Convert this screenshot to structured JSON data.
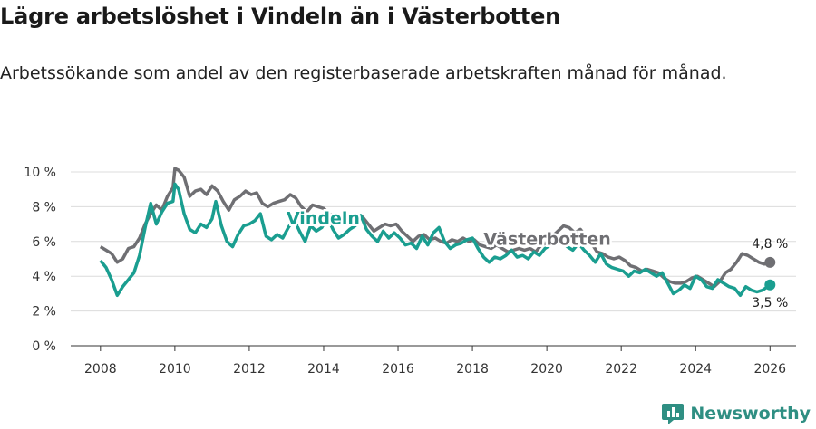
{
  "title": "Lägre arbetslöshet i Vindeln än i Västerbotten",
  "subtitle": "Arbetssökande som andel av den registerbaserade arbetskraften månad för månad.",
  "brand": "Newsworthy",
  "colors": {
    "vindeln": "#1a9e90",
    "vasterbotten": "#6f6f73",
    "grid": "#dcdcdc"
  },
  "chart_data": {
    "type": "line",
    "title": "Lägre arbetslöshet i Vindeln än i Västerbotten",
    "xlim": [
      2007.2,
      2026.7
    ],
    "ylim": [
      0,
      10
    ],
    "x_ticks": [
      2008,
      2010,
      2012,
      2014,
      2016,
      2018,
      2020,
      2022,
      2024,
      2026
    ],
    "y_ticks": [
      0,
      2,
      4,
      6,
      8,
      10
    ],
    "y_tick_labels": [
      "0 %",
      "2 %",
      "4 %",
      "6 %",
      "8 %",
      "10 %"
    ],
    "series": [
      {
        "name": "Västerbotten",
        "inline_label": "Västerbotten",
        "end_label": "4,8 %",
        "points": [
          [
            2008.0,
            5.7
          ],
          [
            2008.15,
            5.5
          ],
          [
            2008.3,
            5.3
          ],
          [
            2008.45,
            4.8
          ],
          [
            2008.6,
            5.0
          ],
          [
            2008.75,
            5.6
          ],
          [
            2008.9,
            5.7
          ],
          [
            2009.05,
            6.2
          ],
          [
            2009.2,
            7.0
          ],
          [
            2009.35,
            7.6
          ],
          [
            2009.5,
            8.1
          ],
          [
            2009.65,
            7.8
          ],
          [
            2009.8,
            8.6
          ],
          [
            2009.95,
            9.1
          ],
          [
            2010.0,
            10.2
          ],
          [
            2010.1,
            10.1
          ],
          [
            2010.25,
            9.7
          ],
          [
            2010.4,
            8.6
          ],
          [
            2010.55,
            8.9
          ],
          [
            2010.7,
            9.0
          ],
          [
            2010.85,
            8.7
          ],
          [
            2011.0,
            9.2
          ],
          [
            2011.15,
            8.9
          ],
          [
            2011.3,
            8.3
          ],
          [
            2011.45,
            7.8
          ],
          [
            2011.6,
            8.4
          ],
          [
            2011.75,
            8.6
          ],
          [
            2011.9,
            8.9
          ],
          [
            2012.05,
            8.7
          ],
          [
            2012.2,
            8.8
          ],
          [
            2012.35,
            8.2
          ],
          [
            2012.5,
            8.0
          ],
          [
            2012.65,
            8.2
          ],
          [
            2012.8,
            8.3
          ],
          [
            2012.95,
            8.4
          ],
          [
            2013.1,
            8.7
          ],
          [
            2013.25,
            8.5
          ],
          [
            2013.4,
            8.0
          ],
          [
            2013.55,
            7.7
          ],
          [
            2013.7,
            8.1
          ],
          [
            2013.85,
            8.0
          ],
          [
            2014.0,
            7.9
          ],
          [
            2014.15,
            7.6
          ],
          [
            2014.3,
            7.4
          ],
          [
            2014.45,
            7.4
          ],
          [
            2014.6,
            7.6
          ],
          [
            2014.75,
            7.5
          ],
          [
            2014.9,
            7.2
          ],
          [
            2015.05,
            7.4
          ],
          [
            2015.2,
            7.0
          ],
          [
            2015.35,
            6.6
          ],
          [
            2015.5,
            6.8
          ],
          [
            2015.65,
            7.0
          ],
          [
            2015.8,
            6.9
          ],
          [
            2015.95,
            7.0
          ],
          [
            2016.1,
            6.6
          ],
          [
            2016.25,
            6.3
          ],
          [
            2016.4,
            6.0
          ],
          [
            2016.55,
            6.3
          ],
          [
            2016.7,
            6.4
          ],
          [
            2016.85,
            6.1
          ],
          [
            2017.0,
            6.2
          ],
          [
            2017.15,
            6.0
          ],
          [
            2017.3,
            5.9
          ],
          [
            2017.45,
            6.1
          ],
          [
            2017.6,
            6.0
          ],
          [
            2017.75,
            6.2
          ],
          [
            2017.9,
            6.0
          ],
          [
            2018.05,
            6.1
          ],
          [
            2018.2,
            5.8
          ],
          [
            2018.35,
            5.7
          ],
          [
            2018.5,
            5.6
          ],
          [
            2018.65,
            5.8
          ],
          [
            2018.8,
            5.6
          ],
          [
            2018.95,
            5.4
          ],
          [
            2019.1,
            5.5
          ],
          [
            2019.25,
            5.6
          ],
          [
            2019.4,
            5.5
          ],
          [
            2019.55,
            5.6
          ],
          [
            2019.7,
            5.4
          ],
          [
            2019.85,
            5.8
          ],
          [
            2020.0,
            5.9
          ],
          [
            2020.15,
            6.3
          ],
          [
            2020.3,
            6.6
          ],
          [
            2020.45,
            6.9
          ],
          [
            2020.6,
            6.8
          ],
          [
            2020.75,
            6.5
          ],
          [
            2020.9,
            6.7
          ],
          [
            2021.05,
            6.3
          ],
          [
            2021.2,
            5.9
          ],
          [
            2021.35,
            5.4
          ],
          [
            2021.5,
            5.3
          ],
          [
            2021.65,
            5.1
          ],
          [
            2021.8,
            5.0
          ],
          [
            2021.95,
            5.1
          ],
          [
            2022.1,
            4.9
          ],
          [
            2022.25,
            4.6
          ],
          [
            2022.4,
            4.5
          ],
          [
            2022.55,
            4.3
          ],
          [
            2022.7,
            4.4
          ],
          [
            2022.85,
            4.3
          ],
          [
            2023.0,
            4.2
          ],
          [
            2023.15,
            3.9
          ],
          [
            2023.3,
            3.7
          ],
          [
            2023.45,
            3.6
          ],
          [
            2023.6,
            3.6
          ],
          [
            2023.75,
            3.7
          ],
          [
            2023.9,
            3.9
          ],
          [
            2024.05,
            4.0
          ],
          [
            2024.2,
            3.8
          ],
          [
            2024.35,
            3.6
          ],
          [
            2024.5,
            3.4
          ],
          [
            2024.65,
            3.7
          ],
          [
            2024.8,
            4.2
          ],
          [
            2024.95,
            4.4
          ],
          [
            2025.1,
            4.8
          ],
          [
            2025.25,
            5.3
          ],
          [
            2025.4,
            5.2
          ],
          [
            2025.55,
            5.0
          ],
          [
            2025.7,
            4.8
          ],
          [
            2025.85,
            4.7
          ],
          [
            2026.0,
            4.8
          ]
        ]
      },
      {
        "name": "Vindeln",
        "inline_label": "Vindeln",
        "end_label": "3,5 %",
        "points": [
          [
            2008.0,
            4.9
          ],
          [
            2008.15,
            4.5
          ],
          [
            2008.3,
            3.8
          ],
          [
            2008.45,
            2.9
          ],
          [
            2008.6,
            3.4
          ],
          [
            2008.75,
            3.8
          ],
          [
            2008.9,
            4.2
          ],
          [
            2009.05,
            5.2
          ],
          [
            2009.2,
            6.8
          ],
          [
            2009.35,
            8.2
          ],
          [
            2009.5,
            7.0
          ],
          [
            2009.65,
            7.7
          ],
          [
            2009.8,
            8.2
          ],
          [
            2009.95,
            8.3
          ],
          [
            2010.0,
            9.3
          ],
          [
            2010.1,
            9.0
          ],
          [
            2010.25,
            7.6
          ],
          [
            2010.4,
            6.7
          ],
          [
            2010.55,
            6.5
          ],
          [
            2010.7,
            7.0
          ],
          [
            2010.85,
            6.8
          ],
          [
            2011.0,
            7.3
          ],
          [
            2011.1,
            8.3
          ],
          [
            2011.25,
            6.9
          ],
          [
            2011.4,
            6.0
          ],
          [
            2011.55,
            5.7
          ],
          [
            2011.7,
            6.4
          ],
          [
            2011.85,
            6.9
          ],
          [
            2012.0,
            7.0
          ],
          [
            2012.15,
            7.2
          ],
          [
            2012.3,
            7.6
          ],
          [
            2012.45,
            6.3
          ],
          [
            2012.6,
            6.1
          ],
          [
            2012.75,
            6.4
          ],
          [
            2012.9,
            6.2
          ],
          [
            2013.05,
            6.8
          ],
          [
            2013.2,
            7.3
          ],
          [
            2013.35,
            6.6
          ],
          [
            2013.5,
            6.0
          ],
          [
            2013.65,
            6.9
          ],
          [
            2013.8,
            6.6
          ],
          [
            2013.95,
            6.8
          ],
          [
            2014.1,
            7.4
          ],
          [
            2014.25,
            6.7
          ],
          [
            2014.4,
            6.2
          ],
          [
            2014.55,
            6.4
          ],
          [
            2014.7,
            6.7
          ],
          [
            2014.85,
            6.9
          ],
          [
            2015.0,
            7.5
          ],
          [
            2015.15,
            6.7
          ],
          [
            2015.3,
            6.3
          ],
          [
            2015.45,
            6.0
          ],
          [
            2015.6,
            6.6
          ],
          [
            2015.75,
            6.2
          ],
          [
            2015.9,
            6.5
          ],
          [
            2016.05,
            6.2
          ],
          [
            2016.2,
            5.8
          ],
          [
            2016.35,
            5.9
          ],
          [
            2016.5,
            5.6
          ],
          [
            2016.65,
            6.3
          ],
          [
            2016.8,
            5.8
          ],
          [
            2016.95,
            6.5
          ],
          [
            2017.1,
            6.8
          ],
          [
            2017.25,
            6.0
          ],
          [
            2017.4,
            5.6
          ],
          [
            2017.55,
            5.8
          ],
          [
            2017.7,
            5.9
          ],
          [
            2017.85,
            6.1
          ],
          [
            2018.0,
            6.2
          ],
          [
            2018.15,
            5.6
          ],
          [
            2018.3,
            5.1
          ],
          [
            2018.45,
            4.8
          ],
          [
            2018.6,
            5.1
          ],
          [
            2018.75,
            5.0
          ],
          [
            2018.9,
            5.2
          ],
          [
            2019.05,
            5.5
          ],
          [
            2019.2,
            5.1
          ],
          [
            2019.35,
            5.2
          ],
          [
            2019.5,
            5.0
          ],
          [
            2019.65,
            5.4
          ],
          [
            2019.8,
            5.2
          ],
          [
            2019.95,
            5.6
          ],
          [
            2020.1,
            5.8
          ],
          [
            2020.25,
            6.1
          ],
          [
            2020.4,
            6.0
          ],
          [
            2020.55,
            5.7
          ],
          [
            2020.7,
            5.5
          ],
          [
            2020.85,
            5.9
          ],
          [
            2021.0,
            5.5
          ],
          [
            2021.15,
            5.2
          ],
          [
            2021.3,
            4.8
          ],
          [
            2021.45,
            5.3
          ],
          [
            2021.6,
            4.7
          ],
          [
            2021.75,
            4.5
          ],
          [
            2021.9,
            4.4
          ],
          [
            2022.05,
            4.3
          ],
          [
            2022.2,
            4.0
          ],
          [
            2022.35,
            4.3
          ],
          [
            2022.5,
            4.2
          ],
          [
            2022.65,
            4.4
          ],
          [
            2022.8,
            4.2
          ],
          [
            2022.95,
            4.0
          ],
          [
            2023.1,
            4.2
          ],
          [
            2023.25,
            3.6
          ],
          [
            2023.4,
            3.0
          ],
          [
            2023.55,
            3.2
          ],
          [
            2023.7,
            3.5
          ],
          [
            2023.85,
            3.3
          ],
          [
            2024.0,
            4.0
          ],
          [
            2024.15,
            3.8
          ],
          [
            2024.3,
            3.4
          ],
          [
            2024.45,
            3.3
          ],
          [
            2024.6,
            3.8
          ],
          [
            2024.75,
            3.6
          ],
          [
            2024.9,
            3.4
          ],
          [
            2025.05,
            3.3
          ],
          [
            2025.2,
            2.9
          ],
          [
            2025.35,
            3.4
          ],
          [
            2025.5,
            3.2
          ],
          [
            2025.65,
            3.1
          ],
          [
            2025.8,
            3.2
          ],
          [
            2026.0,
            3.5
          ]
        ]
      }
    ]
  }
}
